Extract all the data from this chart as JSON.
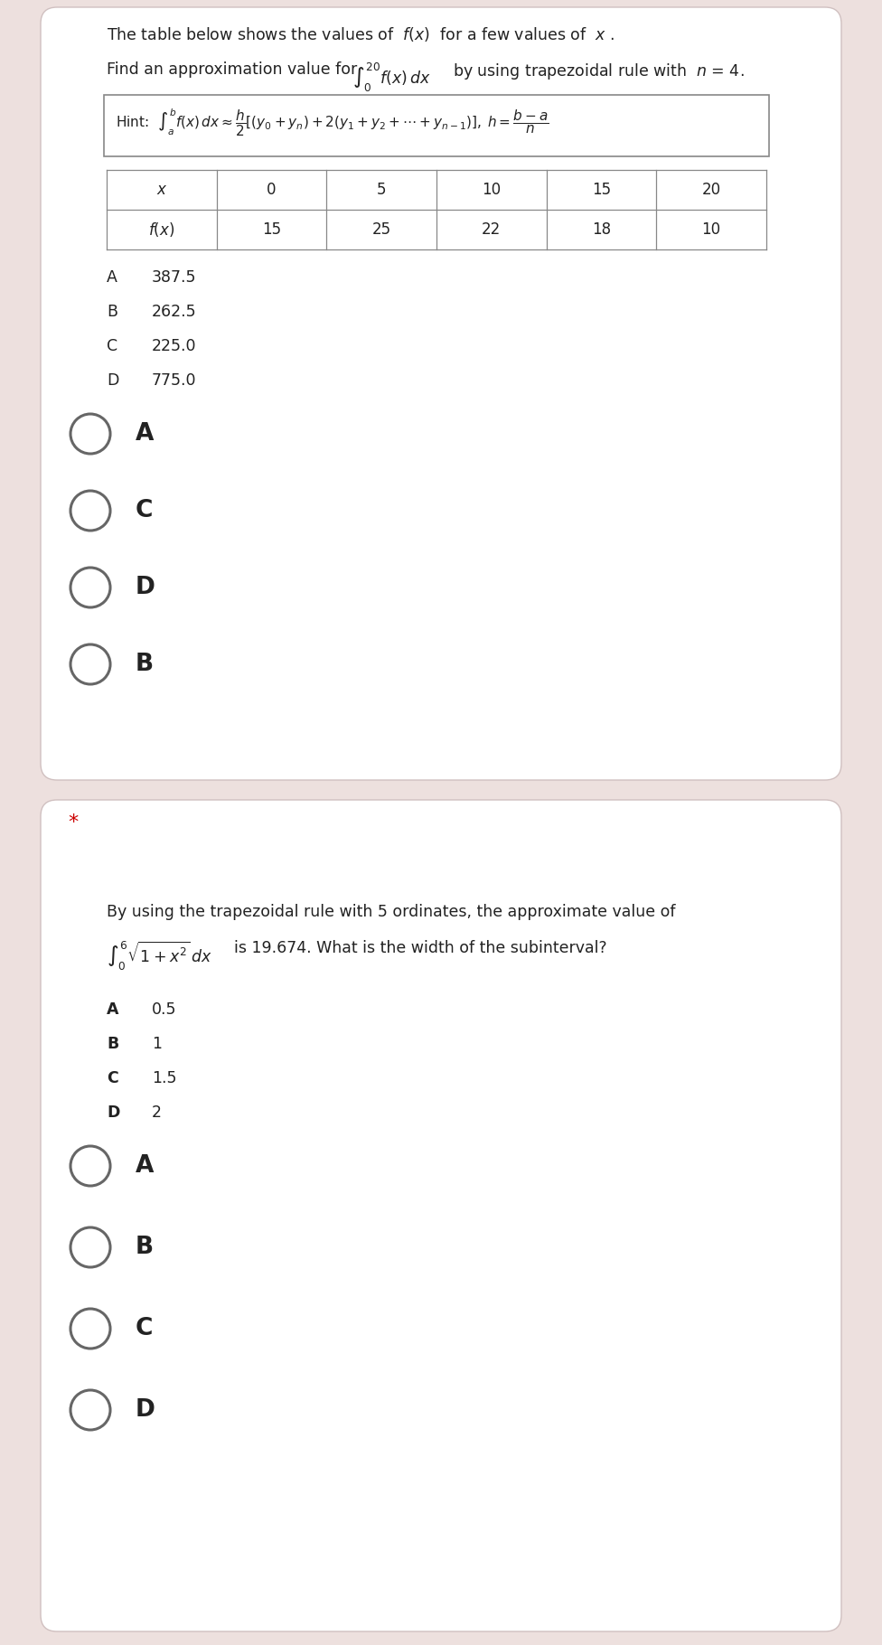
{
  "bg_color": "#ede0de",
  "card_color": "#ffffff",
  "text_color": "#222222",
  "circle_color": "#666666",
  "star_color": "#cc0000",
  "q1_title": "The table below shows the values of  $f(x)$  for a few values of  $x$ .",
  "q1_line2_pre": "Find an approximation value for  ",
  "q1_line2_integral": "$\\int_0^{20} f(x)\\, dx$",
  "q1_line2_post": "  by using trapezoidal rule with  $n$ = 4.",
  "table_x_headers": [
    "$x$",
    "0",
    "5",
    "10",
    "15",
    "20"
  ],
  "table_fx_values": [
    "$f(x)$",
    "15",
    "25",
    "22",
    "18",
    "10"
  ],
  "q1_options": [
    [
      "A",
      "387.5"
    ],
    [
      "B",
      "262.5"
    ],
    [
      "C",
      "225.0"
    ],
    [
      "D",
      "775.0"
    ]
  ],
  "q1_radio_options": [
    "A",
    "C",
    "D",
    "B"
  ],
  "q2_line1": "By using the trapezoidal rule with 5 ordinates, the approximate value of",
  "q2_line2_integral": "$\\int_0^6 \\sqrt{1+x^2}\\, dx$",
  "q2_line2_post": "  is 19.674. What is the width of the subinterval?",
  "q2_options": [
    [
      "A",
      "0.5"
    ],
    [
      "B",
      "1"
    ],
    [
      "C",
      "1.5"
    ],
    [
      "D",
      "2"
    ]
  ],
  "q2_radio_options": [
    "A",
    "B",
    "C",
    "D"
  ]
}
